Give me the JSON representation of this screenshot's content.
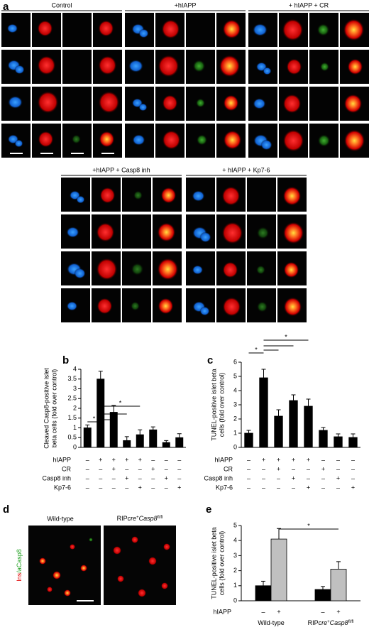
{
  "panel_labels": [
    "a",
    "b",
    "c",
    "d",
    "e"
  ],
  "micrograph_groups": [
    "Control",
    "+hIAPP",
    "+ hIAPP + CR",
    "+hIAPP + Casp8 inh",
    "+ hIAPP + Kp7-6"
  ],
  "panel_d": {
    "stain_label": [
      "Ins",
      "/aCasp8"
    ],
    "labels": [
      [
        "Wild-type"
      ],
      [
        "RIP",
        "cre",
        "+",
        "Casp8",
        "fl/fl"
      ]
    ]
  },
  "chart_data": [
    {
      "type": "bar",
      "y_label": [
        "Cleaved Casp8-positive islet",
        "beta cells (fold over control)"
      ],
      "values": [
        1.0,
        3.5,
        1.8,
        0.35,
        0.65,
        0.9,
        0.25,
        0.5
      ],
      "errors": [
        0.15,
        0.4,
        0.35,
        0.2,
        0.25,
        0.15,
        0.1,
        0.2
      ],
      "color": "#000000",
      "ylim": [
        0,
        4
      ],
      "yticks": [
        0,
        0.5,
        1,
        1.5,
        2,
        2.5,
        3,
        3.5,
        4
      ],
      "condition_rows": [
        {
          "label": "hIAPP",
          "signs": [
            "–",
            "+",
            "+",
            "+",
            "+",
            "–",
            "–",
            "–"
          ]
        },
        {
          "label": "CR",
          "signs": [
            "–",
            "–",
            "+",
            "–",
            "–",
            "+",
            "–",
            "–"
          ]
        },
        {
          "label": "Casp8 inh",
          "signs": [
            "–",
            "–",
            "–",
            "+",
            "–",
            "–",
            "+",
            "–"
          ]
        },
        {
          "label": "Kp7-6",
          "signs": [
            "–",
            "–",
            "–",
            "–",
            "+",
            "–",
            "–",
            "+"
          ]
        }
      ],
      "annotations": [
        "*",
        "*"
      ]
    },
    {
      "type": "bar",
      "y_label": [
        "TUNEL-positive islet beta",
        "cells (fold over control)"
      ],
      "values": [
        1.0,
        4.9,
        2.2,
        3.3,
        2.9,
        1.2,
        0.75,
        0.7
      ],
      "errors": [
        0.2,
        0.6,
        0.45,
        0.4,
        0.5,
        0.2,
        0.2,
        0.25
      ],
      "color": "#000000",
      "ylim": [
        0,
        6
      ],
      "yticks": [
        0,
        1,
        2,
        3,
        4,
        5,
        6
      ],
      "condition_rows": [
        {
          "label": "hIAPP",
          "signs": [
            "–",
            "+",
            "+",
            "+",
            "+",
            "–",
            "–",
            "–"
          ]
        },
        {
          "label": "CR",
          "signs": [
            "–",
            "–",
            "+",
            "–",
            "–",
            "+",
            "–",
            "–"
          ]
        },
        {
          "label": "Casp8 inh",
          "signs": [
            "–",
            "–",
            "–",
            "+",
            "–",
            "–",
            "+",
            "–"
          ]
        },
        {
          "label": "Kp7-6",
          "signs": [
            "–",
            "–",
            "–",
            "–",
            "+",
            "–",
            "–",
            "+"
          ]
        }
      ],
      "annotations": [
        "*",
        "*"
      ]
    },
    {
      "type": "grouped_bar",
      "y_label": [
        "TUNEL-positive islet beta",
        "cells (fold over control)"
      ],
      "categories": [
        [
          "Wild-type"
        ],
        [
          "RIP",
          "cre",
          "+",
          "Casp8",
          "fl/fl"
        ]
      ],
      "series": [
        {
          "color": "#000000",
          "values": [
            1.0,
            0.75
          ],
          "errors": [
            0.3,
            0.2
          ]
        },
        {
          "color": "#c0c0c0",
          "values": [
            4.1,
            2.1
          ],
          "errors": [
            0.7,
            0.5
          ]
        }
      ],
      "ylim": [
        0,
        5
      ],
      "yticks": [
        0,
        1,
        2,
        3,
        4,
        5
      ],
      "condition_rows": [
        {
          "label": "hIAPP",
          "signs": [
            "–",
            "+",
            "–",
            "+"
          ]
        }
      ],
      "annotations": [
        "*"
      ]
    }
  ]
}
